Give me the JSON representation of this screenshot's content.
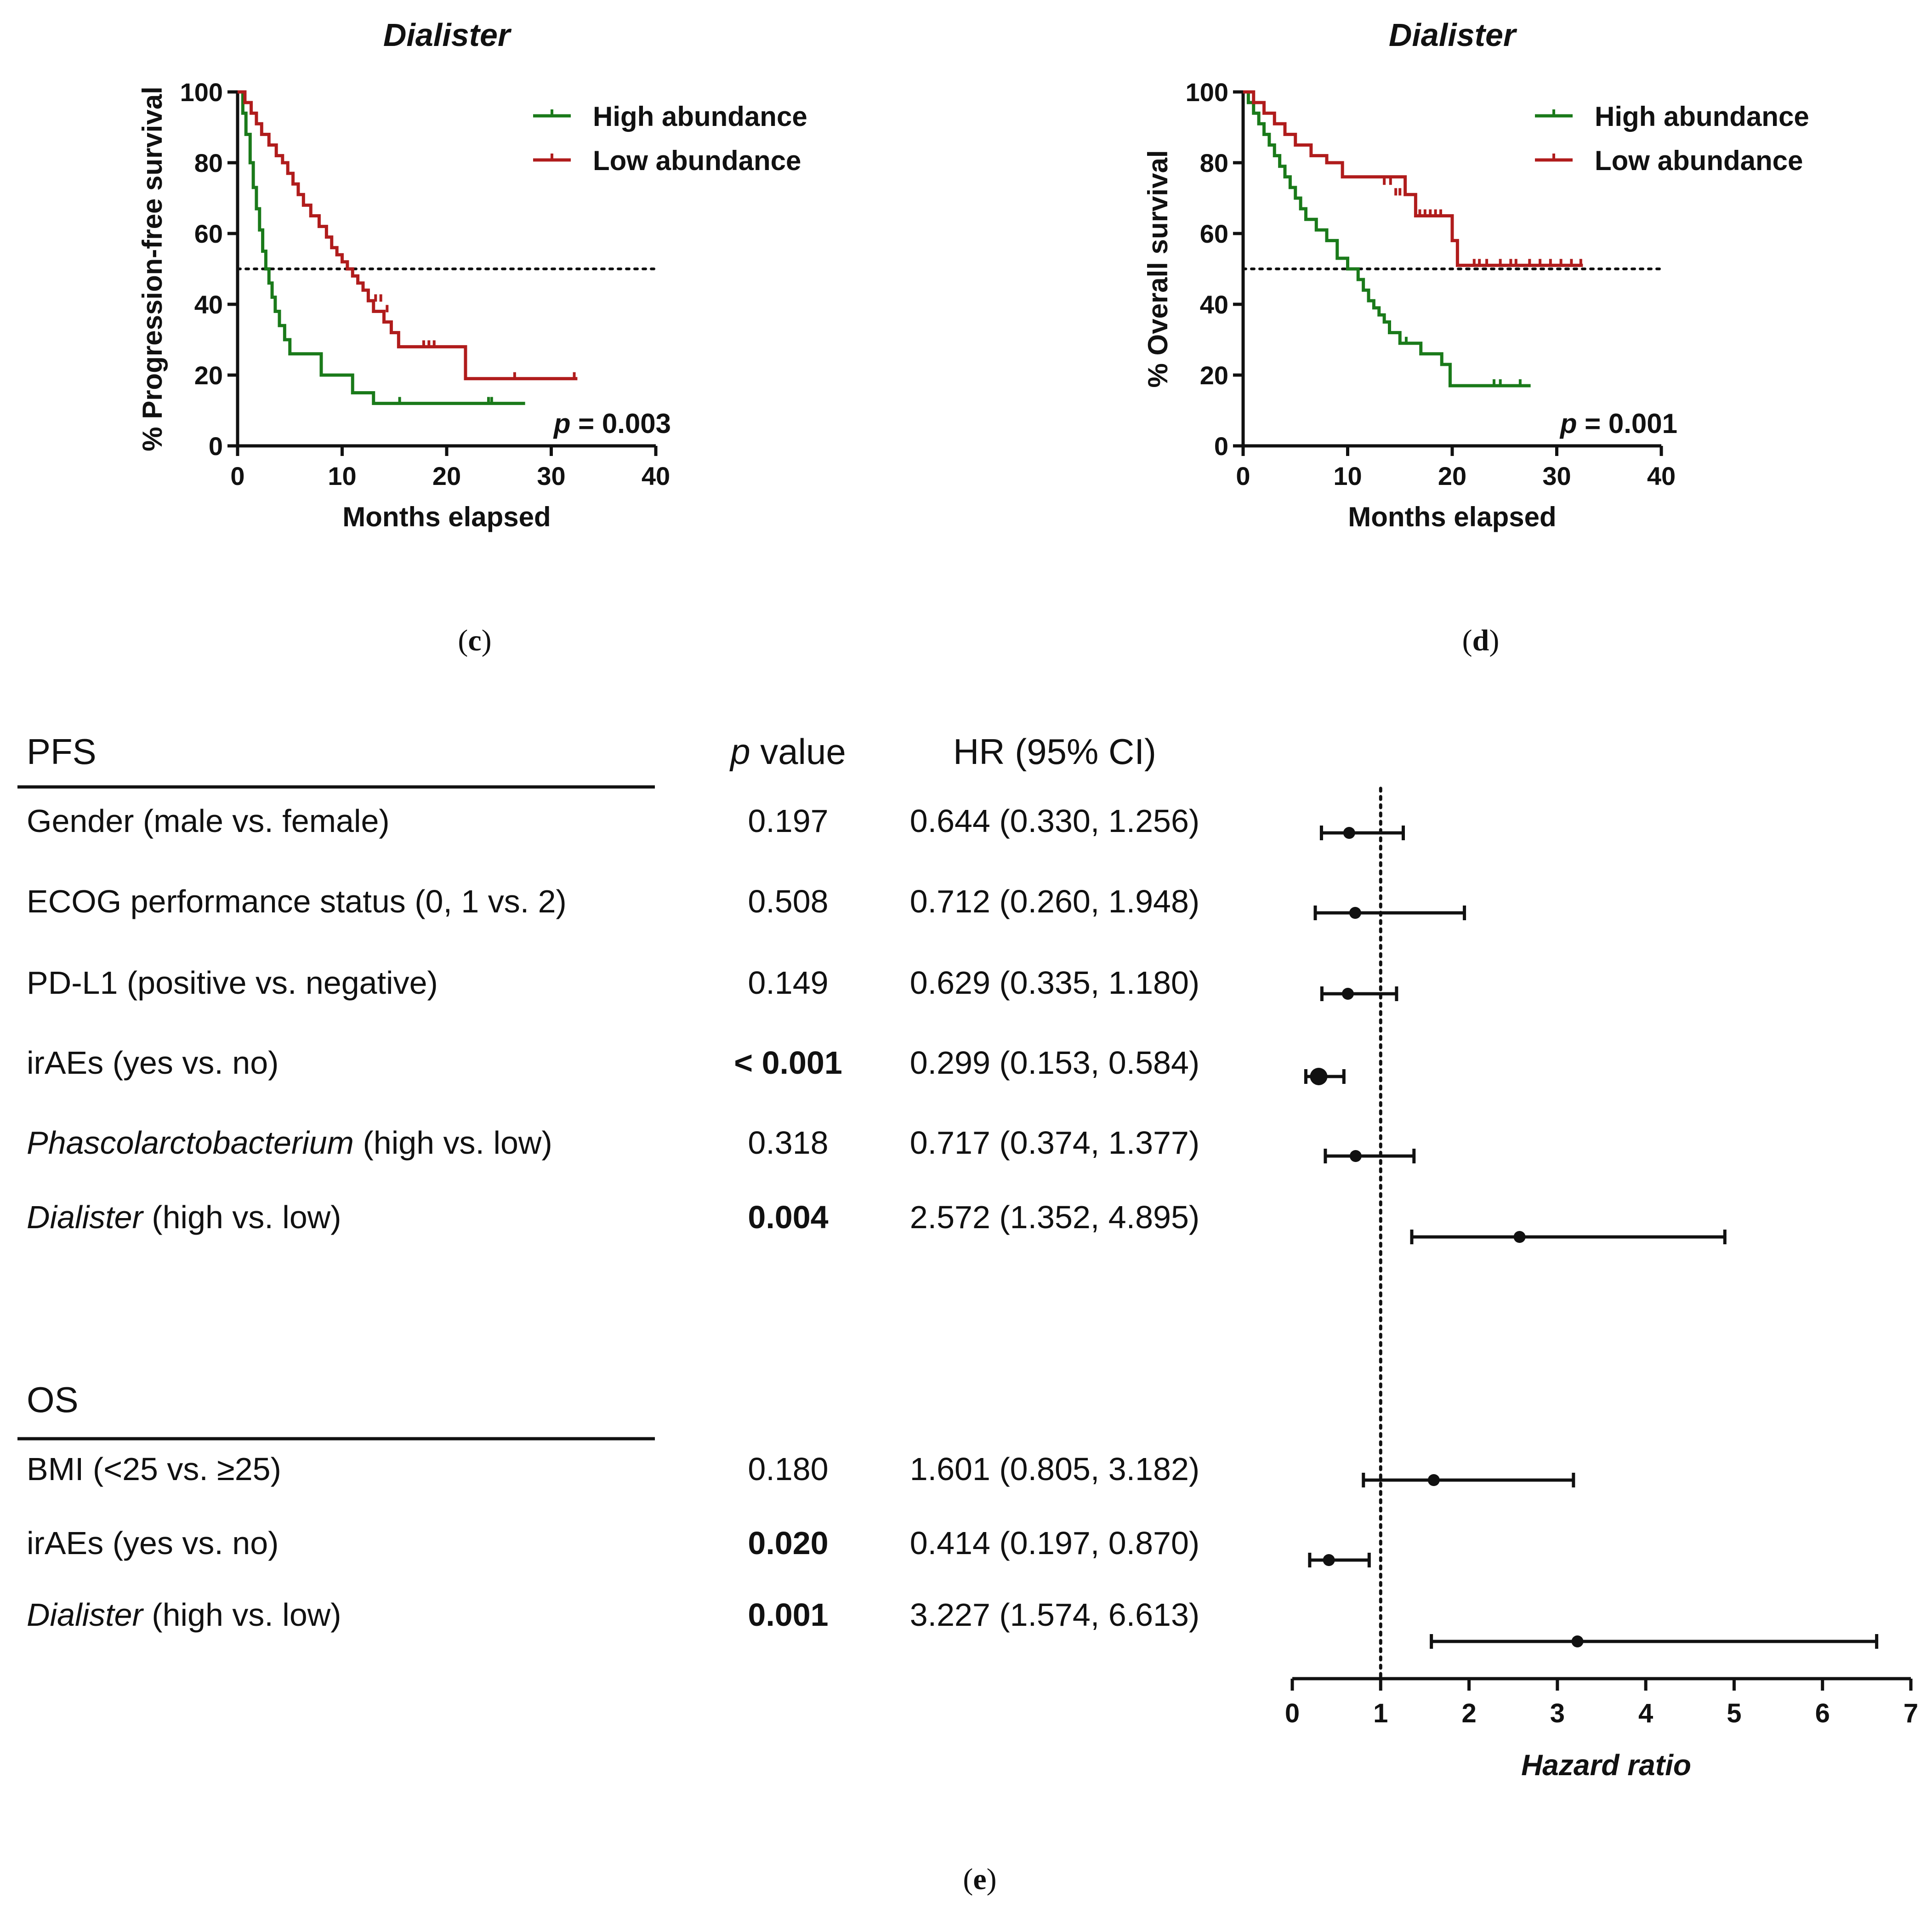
{
  "colors": {
    "high": "#1a7a1a",
    "low": "#b01c1c",
    "ink": "#111111"
  },
  "chart_data": [
    {
      "id": "c",
      "type": "line",
      "step": true,
      "panel_label": "c",
      "title": "Dialister",
      "xlabel": "Months elapsed",
      "ylabel": "% Progression-free survival",
      "xlim": [
        0,
        40
      ],
      "ylim": [
        0,
        100
      ],
      "xticks": [
        "0",
        "10",
        "20",
        "30",
        "40"
      ],
      "yticks": [
        "0",
        "20",
        "40",
        "60",
        "80",
        "100"
      ],
      "median_line": 50,
      "p_label": "p",
      "p_value": "= 0.003",
      "series": [
        {
          "name": "High abundance",
          "color_key": "high",
          "x": [
            0,
            0.5,
            0.8,
            1.2,
            1.5,
            1.8,
            2.1,
            2.4,
            2.7,
            3.0,
            3.3,
            3.6,
            4.0,
            4.5,
            5.0,
            5.5,
            8.0,
            11.0,
            13.0,
            27.5
          ],
          "y": [
            100,
            94,
            88,
            80,
            73,
            67,
            61,
            55,
            50,
            46,
            42,
            38,
            34,
            30,
            26,
            26,
            20,
            15,
            12,
            12
          ],
          "censor_x": [
            15.5,
            24.0,
            24.3
          ],
          "censor_y": [
            12,
            12,
            12
          ]
        },
        {
          "name": "Low abundance",
          "color_key": "low",
          "x": [
            0,
            0.7,
            1.3,
            1.8,
            2.3,
            3.0,
            3.7,
            4.3,
            4.8,
            5.3,
            5.8,
            6.3,
            7.0,
            7.8,
            8.5,
            9.0,
            9.5,
            10.0,
            10.5,
            11.0,
            11.5,
            12.0,
            12.5,
            13.0,
            14.0,
            14.7,
            15.4,
            21.8,
            32.5
          ],
          "y": [
            100,
            97,
            94,
            91,
            88,
            85,
            82,
            80,
            77,
            74,
            71,
            68,
            65,
            62,
            59,
            56,
            54,
            52,
            50,
            48,
            46,
            44,
            41,
            38,
            35,
            32,
            28,
            19,
            19
          ],
          "censor_x": [
            13.2,
            13.7,
            14.3,
            17.8,
            18.3,
            18.8,
            26.5,
            32.2
          ],
          "censor_y": [
            41,
            41,
            38,
            28,
            28,
            28,
            19,
            19
          ]
        }
      ]
    },
    {
      "id": "d",
      "type": "line",
      "step": true,
      "panel_label": "d",
      "title": "Dialister",
      "xlabel": "Months elapsed",
      "ylabel": "% Overall survival",
      "xlim": [
        0,
        40
      ],
      "ylim": [
        0,
        100
      ],
      "xticks": [
        "0",
        "10",
        "20",
        "30",
        "40"
      ],
      "yticks": [
        "0",
        "20",
        "40",
        "60",
        "80",
        "100"
      ],
      "median_line": 50,
      "p_label": "p",
      "p_value": "= 0.001",
      "series": [
        {
          "name": "High abundance",
          "color_key": "high",
          "x": [
            0,
            0.5,
            1.0,
            1.5,
            2.0,
            2.5,
            3.0,
            3.5,
            4.0,
            4.5,
            5.0,
            5.5,
            6.0,
            7.0,
            8.0,
            9.0,
            10.0,
            11.0,
            11.5,
            12.0,
            12.5,
            13.0,
            13.5,
            14.0,
            15.0,
            16.0,
            17.0,
            18.0,
            19.0,
            19.8,
            27.5
          ],
          "y": [
            100,
            97,
            94,
            91,
            88,
            85,
            82,
            79,
            76,
            73,
            70,
            67,
            64,
            61,
            58,
            53,
            50,
            47,
            44,
            41,
            39,
            37,
            35,
            32,
            29,
            29,
            26,
            26,
            23,
            17,
            17
          ],
          "censor_x": [
            15.6,
            24.0,
            24.6,
            26.5
          ],
          "censor_y": [
            29,
            17,
            17,
            17
          ]
        },
        {
          "name": "Low abundance",
          "color_key": "low",
          "x": [
            0,
            1.0,
            2.0,
            3.0,
            4.0,
            5.0,
            6.5,
            8.0,
            9.5,
            15.5,
            16.5,
            20.0,
            20.5,
            32.5
          ],
          "y": [
            100,
            97,
            94,
            91,
            88,
            85,
            82,
            80,
            76,
            71,
            65,
            58,
            51,
            51
          ],
          "censor_x": [
            13.5,
            14.1,
            14.6,
            15.0,
            16.9,
            17.4,
            17.9,
            18.4,
            18.9,
            22.1,
            22.6,
            23.3,
            24.6,
            25.6,
            26.1,
            27.4,
            28.4,
            29.4,
            30.4,
            31.4,
            32.3
          ],
          "censor_y": [
            74,
            74,
            71,
            71,
            65,
            65,
            65,
            65,
            65,
            51,
            51,
            51,
            51,
            51,
            51,
            51,
            51,
            51,
            51,
            51,
            51
          ]
        }
      ]
    },
    {
      "id": "e",
      "type": "forest",
      "panel_label": "e",
      "xlabel": "Hazard ratio",
      "xlim": [
        0,
        7
      ],
      "xticks": [
        "0",
        "1",
        "2",
        "3",
        "4",
        "5",
        "6",
        "7"
      ],
      "reference": 1,
      "col_p": {
        "italic": "p",
        "rest": " value"
      },
      "col_hr": "HR (95% CI)",
      "groups": [
        {
          "title": "PFS",
          "rows": [
            {
              "italic": "",
              "label": "Gender (male vs. female)",
              "p": "0.197",
              "bold_p": false,
              "hr_text": "0.644 (0.330, 1.256)",
              "hr": 0.644,
              "lo": 0.33,
              "hi": 1.256,
              "big": false
            },
            {
              "italic": "",
              "label": "ECOG performance status (0, 1 vs. 2)",
              "p": "0.508",
              "bold_p": false,
              "hr_text": "0.712 (0.260, 1.948)",
              "hr": 0.712,
              "lo": 0.26,
              "hi": 1.948,
              "big": false
            },
            {
              "italic": "",
              "label": "PD-L1 (positive vs. negative)",
              "p": "0.149",
              "bold_p": false,
              "hr_text": "0.629 (0.335, 1.180)",
              "hr": 0.629,
              "lo": 0.335,
              "hi": 1.18,
              "big": false
            },
            {
              "italic": "",
              "label": "irAEs (yes vs. no)",
              "p": "< 0.001",
              "bold_p": true,
              "hr_text": "0.299 (0.153, 0.584)",
              "hr": 0.299,
              "lo": 0.153,
              "hi": 0.584,
              "big": true
            },
            {
              "italic": "Phascolarctobacterium",
              "label": " (high vs. low)",
              "p": "0.318",
              "bold_p": false,
              "hr_text": "0.717 (0.374, 1.377)",
              "hr": 0.717,
              "lo": 0.374,
              "hi": 1.377,
              "big": false
            },
            {
              "italic": "Dialister",
              "label": " (high vs. low)",
              "p": "0.004",
              "bold_p": true,
              "hr_text": "2.572 (1.352, 4.895)",
              "hr": 2.572,
              "lo": 1.352,
              "hi": 4.895,
              "big": false
            }
          ]
        },
        {
          "title": "OS",
          "rows": [
            {
              "italic": "",
              "label": "BMI (<25 vs. ≥25)",
              "p": "0.180",
              "bold_p": false,
              "hr_text": "1.601 (0.805, 3.182)",
              "hr": 1.601,
              "lo": 0.805,
              "hi": 3.182,
              "big": false
            },
            {
              "italic": "",
              "label": "irAEs (yes vs. no)",
              "p": "0.020",
              "bold_p": true,
              "hr_text": "0.414 (0.197, 0.870)",
              "hr": 0.414,
              "lo": 0.197,
              "hi": 0.87,
              "big": false
            },
            {
              "italic": "Dialister",
              "label": " (high vs. low)",
              "p": "0.001",
              "bold_p": true,
              "hr_text": "3.227 (1.574, 6.613)",
              "hr": 3.227,
              "lo": 1.574,
              "hi": 6.613,
              "big": false
            }
          ]
        }
      ]
    }
  ]
}
